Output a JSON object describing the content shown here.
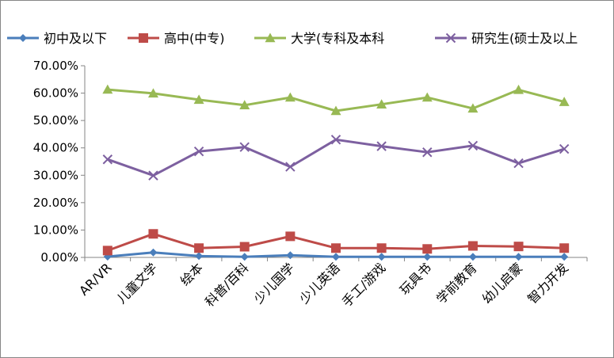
{
  "chart_data": {
    "type": "line",
    "title": "",
    "xlabel": "",
    "ylabel": "",
    "ylim": [
      0,
      70
    ],
    "y_tick_step": 10,
    "y_tick_format": "percent_2dp",
    "grid": false,
    "legend_position": "top",
    "categories": [
      "AR/VR",
      "儿童文学",
      "绘本",
      "科普/百科",
      "少儿国学",
      "少儿英语",
      "手工/游戏",
      "玩具书",
      "学前教育",
      "幼儿启蒙",
      "智力开发"
    ],
    "series": [
      {
        "name": "初中及以下",
        "color": "#4a7ebb",
        "marker": "diamond",
        "values": [
          0.3,
          1.8,
          0.5,
          0.2,
          0.8,
          0.2,
          0.2,
          0.2,
          0.2,
          0.2,
          0.2
        ]
      },
      {
        "name": "高中(中专)",
        "color": "#be4b48",
        "marker": "square",
        "values": [
          2.5,
          8.6,
          3.4,
          3.9,
          7.7,
          3.4,
          3.4,
          3.1,
          4.2,
          4.0,
          3.4
        ]
      },
      {
        "name": "大学(专科及本科",
        "color": "#98b954",
        "marker": "triangle",
        "values": [
          61.3,
          59.9,
          57.6,
          55.6,
          58.4,
          53.5,
          55.9,
          58.4,
          54.4,
          61.2,
          56.8
        ]
      },
      {
        "name": "研究生(硕士及以上",
        "color": "#7d60a0",
        "marker": "x",
        "values": [
          35.8,
          29.9,
          38.7,
          40.3,
          33.1,
          43.0,
          40.6,
          38.4,
          40.8,
          34.4,
          39.6
        ]
      }
    ]
  }
}
